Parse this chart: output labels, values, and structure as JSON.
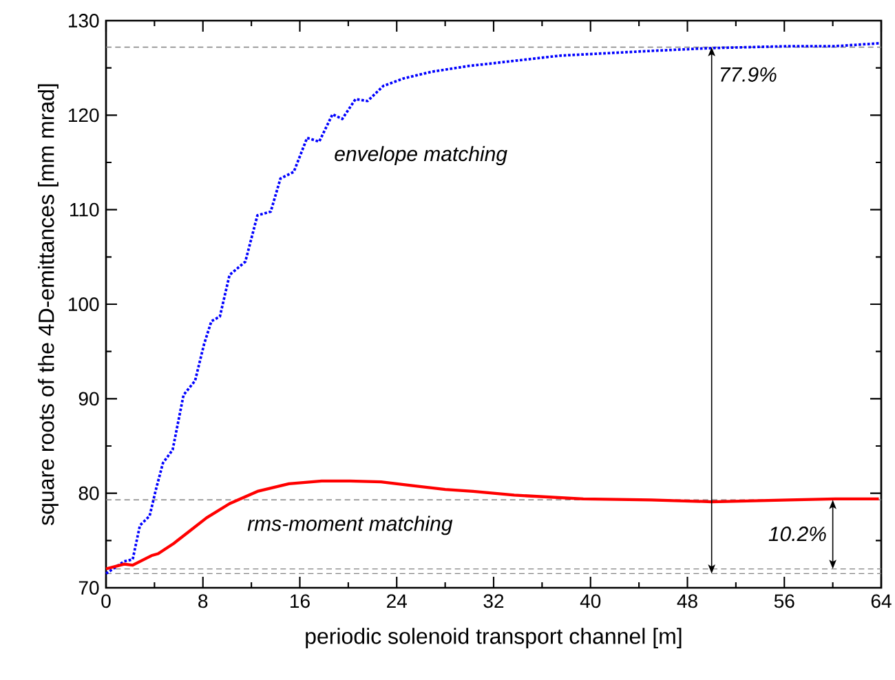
{
  "chart_data": {
    "type": "line",
    "xlabel": "periodic solenoid transport channel [m]",
    "ylabel": "square roots of the 4D-emittances [mm mrad]",
    "xlim": [
      0,
      64
    ],
    "xticks": [
      0,
      8,
      16,
      24,
      32,
      40,
      48,
      56,
      64
    ],
    "ylim": [
      70,
      130
    ],
    "yticks": [
      70,
      80,
      90,
      100,
      110,
      120,
      130
    ],
    "series": [
      {
        "color": "#0000ff",
        "line_style": "dotted",
        "x": [
          0,
          1.5,
          2.2,
          2.8,
          3.6,
          4.1,
          4.7,
          5.5,
          6.4,
          7.35,
          8.1,
          8.7,
          9.4,
          10.2,
          11.5,
          12.5,
          13.6,
          14.4,
          15.5,
          16.6,
          17.6,
          18.7,
          19.5,
          20.6,
          21.6,
          22.9,
          24.6,
          26.9,
          29.9,
          32,
          37.5,
          45,
          50,
          56.4,
          60.2,
          63.8
        ],
        "values": [
          71.5,
          72.8,
          73.0,
          76.6,
          77.6,
          80.3,
          83.2,
          84.6,
          90.4,
          91.9,
          95.8,
          98.2,
          98.7,
          103.1,
          104.5,
          109.4,
          109.8,
          113.3,
          114.0,
          117.6,
          117.2,
          120.1,
          119.6,
          121.7,
          121.5,
          123.1,
          123.9,
          124.6,
          125.2,
          125.5,
          126.3,
          126.8,
          127.1,
          127.3,
          127.3,
          127.6
        ]
      },
      {
        "color": "#ff0000",
        "line_style": "solid",
        "x": [
          0,
          1.5,
          2.2,
          3.75,
          4.3,
          5.6,
          6.8,
          8.3,
          10.2,
          12.5,
          15.1,
          17.8,
          20,
          22.7,
          25.3,
          28,
          30.3,
          33.7,
          39.4,
          45,
          50,
          56.4,
          60.2,
          63.8
        ],
        "values": [
          72.0,
          72.5,
          72.4,
          73.4,
          73.6,
          74.7,
          75.9,
          77.4,
          78.9,
          80.2,
          81.0,
          81.3,
          81.3,
          81.2,
          80.8,
          80.4,
          80.2,
          79.8,
          79.4,
          79.3,
          79.1,
          79.3,
          79.4,
          79.4
        ]
      }
    ],
    "ref_lines": [
      {
        "axis": "y",
        "value": 127.2,
        "line_style": "dashed"
      },
      {
        "axis": "y",
        "value": 79.3,
        "line_style": "dashed"
      },
      {
        "axis": "y",
        "value": 72.0,
        "line_style": "dashed"
      },
      {
        "axis": "y",
        "value": 71.5,
        "line_style": "dashed"
      }
    ],
    "annotations": [
      "envelope matching",
      "rms-moment matching",
      "77.9%",
      "10.2%"
    ]
  }
}
